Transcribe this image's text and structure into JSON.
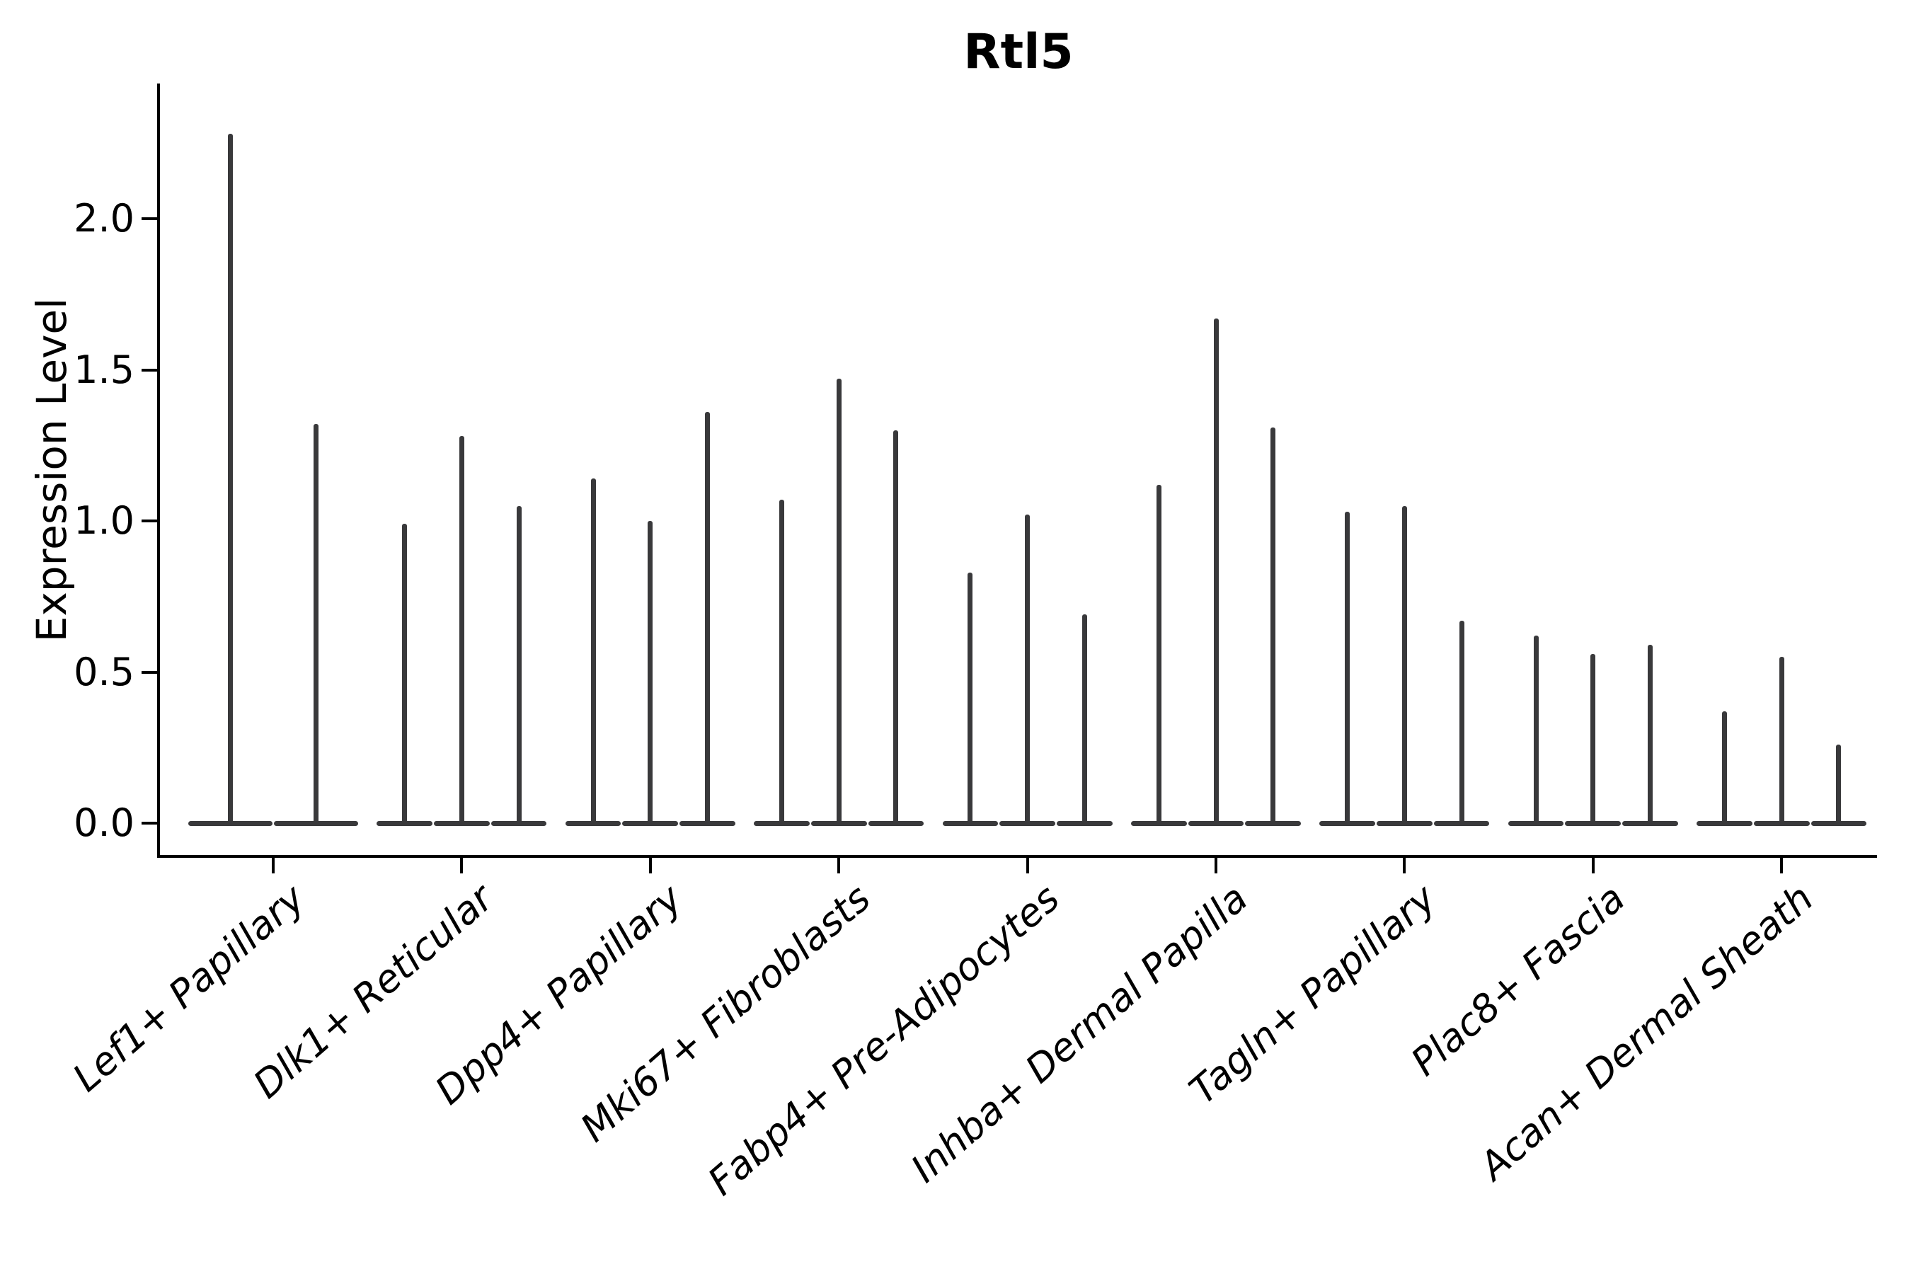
{
  "title": "Rtl5",
  "ylabel": "Expression Level",
  "chart_data": {
    "type": "violin",
    "title": "Rtl5",
    "xlabel": "",
    "ylabel": "Expression Level",
    "ylim": [
      -0.1,
      2.45
    ],
    "yticks": [
      0.0,
      0.5,
      1.0,
      1.5,
      2.0
    ],
    "ytick_labels": [
      "0.0",
      "0.5",
      "1.0",
      "1.5",
      "2.0"
    ],
    "grid": false,
    "legend": "none",
    "xtick_label_style": "italic, rotated 41deg, right-anchored",
    "categories": [
      "Lef1+ Papillary",
      "Dlk1+ Reticular",
      "Dpp4+ Papillary",
      "Mki67+ Fibroblasts",
      "Fabp4+ Pre-Adipocytes",
      "Inhba+ Dermal Papilla",
      "Tagln+ Papillary",
      "Plac8+ Fascia",
      "Acan+ Dermal Sheath"
    ],
    "groups": [
      {
        "label": "Lef1+ Papillary",
        "violin_max_expression": [
          2.28,
          1.32
        ]
      },
      {
        "label": "Dlk1+ Reticular",
        "violin_max_expression": [
          0.99,
          1.28,
          1.05
        ]
      },
      {
        "label": "Dpp4+ Papillary",
        "violin_max_expression": [
          1.14,
          1.0,
          1.36
        ]
      },
      {
        "label": "Mki67+ Fibroblasts",
        "violin_max_expression": [
          1.07,
          1.47,
          1.3
        ]
      },
      {
        "label": "Fabp4+ Pre-Adipocytes",
        "violin_max_expression": [
          0.83,
          1.02,
          0.69
        ]
      },
      {
        "label": "Inhba+ Dermal Papilla",
        "violin_max_expression": [
          1.12,
          1.67,
          1.31
        ]
      },
      {
        "label": "Tagln+ Papillary",
        "violin_max_expression": [
          1.03,
          1.05,
          0.67
        ]
      },
      {
        "label": "Plac8+ Fascia",
        "violin_max_expression": [
          0.62,
          0.56,
          0.59
        ]
      },
      {
        "label": "Acan+ Dermal Sheath",
        "violin_max_expression": [
          0.37,
          0.55,
          0.26
        ]
      }
    ],
    "violin_shape_note": "each violin is flattened at expression 0 with a thin vertical tail up to its max value",
    "colors": {
      "violin": "#39393b",
      "axis": "#000000",
      "background": "#ffffff",
      "text": "#000000"
    }
  }
}
